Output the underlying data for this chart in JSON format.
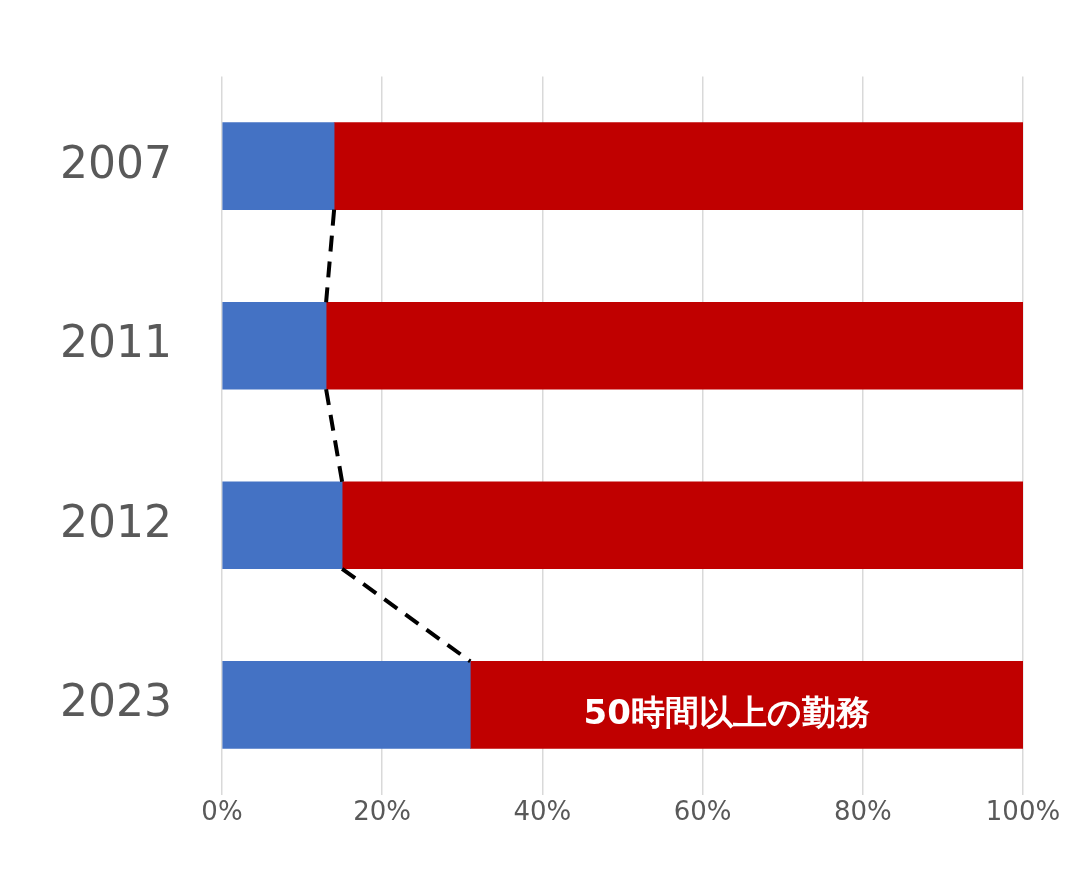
{
  "chart_data": {
    "type": "bar",
    "orientation": "horizontal",
    "stacked": true,
    "categories": [
      "2007",
      "2011",
      "2012",
      "2023"
    ],
    "series": [
      {
        "color": "#4472c4",
        "values": [
          14,
          13,
          15,
          31
        ]
      },
      {
        "color": "#c00000",
        "values": [
          86,
          87,
          85,
          69
        ]
      }
    ],
    "xlim": [
      0,
      100
    ],
    "xticks": [
      {
        "value": 0,
        "label": "0%"
      },
      {
        "value": 20,
        "label": "20%"
      },
      {
        "value": 40,
        "label": "40%"
      },
      {
        "value": 60,
        "label": "60%"
      },
      {
        "value": 80,
        "label": "80%"
      },
      {
        "value": 100,
        "label": "100%"
      }
    ],
    "grid": "x",
    "legend": false,
    "annotations": [
      "50時間以上の勤務"
    ]
  }
}
